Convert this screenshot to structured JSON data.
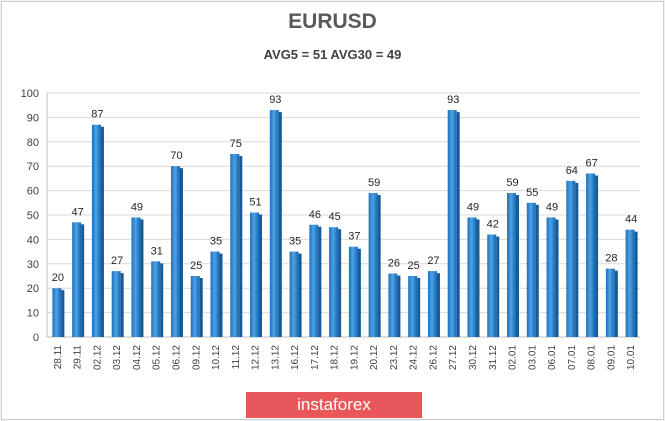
{
  "chart_data": {
    "type": "bar",
    "title": "EURUSD",
    "subtitle": "AVG5 = 51 AVG30 = 49",
    "categories": [
      "28.11",
      "29.11",
      "02.12",
      "03.12",
      "04.12",
      "05.12",
      "06.12",
      "09.12",
      "10.12",
      "11.12",
      "12.12",
      "13.12",
      "16.12",
      "17.12",
      "18.12",
      "19.12",
      "20.12",
      "23.12",
      "24.12",
      "26.12",
      "27.12",
      "30.12",
      "31.12",
      "02.01",
      "03.01",
      "06.01",
      "07.01",
      "08.01",
      "09.01",
      "10.01"
    ],
    "values": [
      20,
      47,
      87,
      27,
      49,
      31,
      70,
      25,
      35,
      75,
      51,
      93,
      35,
      46,
      45,
      37,
      59,
      26,
      25,
      27,
      93,
      49,
      42,
      59,
      55,
      49,
      64,
      67,
      28,
      44
    ],
    "y_ticks": [
      0,
      10,
      20,
      30,
      40,
      50,
      60,
      70,
      80,
      90,
      100
    ],
    "ylim": [
      0,
      100
    ],
    "grid": true,
    "bar_color": "#2a7fc9"
  },
  "branding": {
    "text": "instaforex"
  }
}
